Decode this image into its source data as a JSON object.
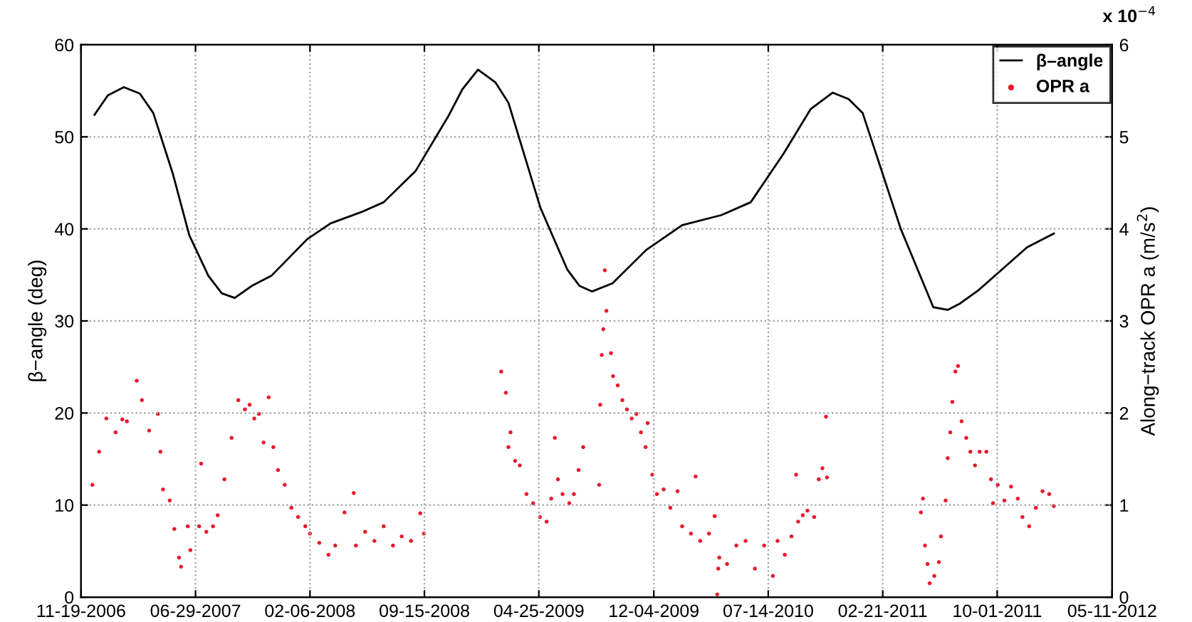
{
  "chart_data": {
    "type": "line",
    "ylabel": "β−angle (deg)",
    "y2label": "Along−track OPR a (m/s$^{2}$)",
    "annotations": [
      "x 10$^{−4}$"
    ],
    "xlim": [
      "2006-11-19",
      "2012-05-11"
    ],
    "xticks": [
      {
        "value": "2006-11-19",
        "label": "11-19-2006"
      },
      {
        "value": "2007-06-29",
        "label": "06-29-2007"
      },
      {
        "value": "2008-02-06",
        "label": "02-06-2008"
      },
      {
        "value": "2008-09-15",
        "label": "09-15-2008"
      },
      {
        "value": "2009-04-25",
        "label": "04-25-2009"
      },
      {
        "value": "2009-12-04",
        "label": "12-04-2009"
      },
      {
        "value": "2010-07-14",
        "label": "07-14-2010"
      },
      {
        "value": "2011-02-21",
        "label": "02-21-2011"
      },
      {
        "value": "2011-10-01",
        "label": "10-01-2011"
      },
      {
        "value": "2012-05-11",
        "label": "05-11-2012"
      }
    ],
    "ylim": [
      0,
      60
    ],
    "yticks": [
      0,
      10,
      20,
      30,
      40,
      50,
      60
    ],
    "y2lim": [
      0,
      6
    ],
    "y2ticks": [
      0,
      1,
      2,
      3,
      4,
      5,
      6
    ],
    "grid": true,
    "legend": "top right",
    "series": [
      {
        "name": "β–angle",
        "color": "#000000",
        "x": [
          "2006-12-15",
          "2007-01-10",
          "2007-02-10",
          "2007-03-13",
          "2007-04-08",
          "2007-05-16",
          "2007-06-17",
          "2007-07-24",
          "2007-08-19",
          "2007-09-13",
          "2007-10-16",
          "2007-11-23",
          "2008-02-01",
          "2008-03-17",
          "2008-05-19",
          "2008-06-28",
          "2008-08-29",
          "2008-10-31",
          "2008-11-28",
          "2008-12-28",
          "2009-01-31",
          "2009-02-25",
          "2009-04-28",
          "2009-06-19",
          "2009-07-13",
          "2009-08-06",
          "2009-09-15",
          "2009-11-19",
          "2010-01-28",
          "2010-04-14",
          "2010-06-10",
          "2010-08-13",
          "2010-10-04",
          "2010-11-16",
          "2010-12-17",
          "2011-01-13",
          "2011-03-28",
          "2011-05-30",
          "2011-06-27",
          "2011-07-21",
          "2011-08-27",
          "2011-11-28",
          "2012-01-19"
        ],
        "values": [
          52.4,
          54.5,
          55.4,
          54.7,
          52.6,
          46,
          39.3,
          34.9,
          33.0,
          32.5,
          33.8,
          34.9,
          38.9,
          40.6,
          41.9,
          42.9,
          46.3,
          52.2,
          55.2,
          57.3,
          55.9,
          53.7,
          42.3,
          35.6,
          33.8,
          33.2,
          34.1,
          37.7,
          40.4,
          41.5,
          42.9,
          48.2,
          53.0,
          54.8,
          54.1,
          52.6,
          40.0,
          31.5,
          31.2,
          31.9,
          33.4,
          38.0,
          39.5
        ]
      },
      {
        "name": "OPR a",
        "type": "scatter",
        "axis": "y2",
        "color": "#e8192c",
        "x": [
          "2006-12-11",
          "2006-12-24",
          "2007-01-07",
          "2007-01-25",
          "2007-02-07",
          "2007-02-16",
          "2007-03-07",
          "2007-03-17",
          "2007-03-31",
          "2007-04-17",
          "2007-04-22",
          "2007-04-27",
          "2007-05-10",
          "2007-05-19",
          "2007-05-28",
          "2007-06-01",
          "2007-06-14",
          "2007-06-19",
          "2007-07-06",
          "2007-07-10",
          "2007-07-20",
          "2007-08-02",
          "2007-08-11",
          "2007-08-24",
          "2007-09-07",
          "2007-09-20",
          "2007-10-03",
          "2007-10-12",
          "2007-10-21",
          "2007-10-30",
          "2007-11-18",
          "2007-11-08",
          "2007-11-27",
          "2007-12-06",
          "2007-12-19",
          "2008-01-01",
          "2008-01-14",
          "2008-01-28",
          "2008-02-06",
          "2008-02-24",
          "2008-03-13",
          "2008-03-26",
          "2008-04-13",
          "2008-05-01",
          "2008-05-05",
          "2008-05-23",
          "2008-06-10",
          "2008-06-28",
          "2008-07-16",
          "2008-08-02",
          "2008-08-20",
          "2008-09-07",
          "2008-09-14",
          "2009-02-11",
          "2009-02-20",
          "2009-03-01",
          "2009-02-25",
          "2009-03-10",
          "2009-03-19",
          "2009-04-01",
          "2009-04-14",
          "2009-04-27",
          "2009-05-10",
          "2009-05-19",
          "2009-05-26",
          "2009-06-01",
          "2009-06-10",
          "2009-06-23",
          "2009-07-02",
          "2009-07-11",
          "2009-07-20",
          "2009-08-20",
          "2009-08-22",
          "2009-08-25",
          "2009-08-28",
          "2009-08-31",
          "2009-09-03",
          "2009-09-12",
          "2009-09-16",
          "2009-09-25",
          "2009-10-04",
          "2009-10-13",
          "2009-10-22",
          "2009-10-31",
          "2009-11-09",
          "2009-11-18",
          "2009-11-22",
          "2009-12-01",
          "2009-12-10",
          "2009-12-23",
          "2010-01-05",
          "2010-01-19",
          "2010-01-28",
          "2010-02-14",
          "2010-02-23",
          "2010-03-04",
          "2010-03-21",
          "2010-04-01",
          "2010-04-08",
          "2010-04-10",
          "2010-04-06",
          "2010-04-25",
          "2010-05-13",
          "2010-05-31",
          "2010-06-18",
          "2010-07-06",
          "2010-07-23",
          "2010-08-01",
          "2010-08-15",
          "2010-08-28",
          "2010-09-06",
          "2010-09-10",
          "2010-09-19",
          "2010-09-28",
          "2010-10-11",
          "2010-10-20",
          "2010-10-27",
          "2010-11-03",
          "2010-11-05",
          "2011-05-06",
          "2011-05-10",
          "2011-05-14",
          "2011-05-19",
          "2011-05-23",
          "2011-06-01",
          "2011-06-10",
          "2011-06-14",
          "2011-06-23",
          "2011-06-27",
          "2011-07-02",
          "2011-07-06",
          "2011-07-12",
          "2011-07-17",
          "2011-07-24",
          "2011-08-02",
          "2011-08-10",
          "2011-08-19",
          "2011-08-28",
          "2011-09-10",
          "2011-09-19",
          "2011-09-23",
          "2011-10-02",
          "2011-10-15",
          "2011-10-28",
          "2011-11-10",
          "2011-11-19",
          "2011-12-02",
          "2011-12-15",
          "2011-12-28",
          "2012-01-10",
          "2012-01-19"
        ],
        "values": [
          1.22,
          1.58,
          1.94,
          1.79,
          1.93,
          1.91,
          2.35,
          2.14,
          1.81,
          1.99,
          1.58,
          1.17,
          1.05,
          0.74,
          0.43,
          0.33,
          0.77,
          0.51,
          0.77,
          1.45,
          0.71,
          0.77,
          0.89,
          1.28,
          1.73,
          2.14,
          2.04,
          2.09,
          1.94,
          1.99,
          2.17,
          1.68,
          1.63,
          1.38,
          1.22,
          0.97,
          0.87,
          0.77,
          0.69,
          0.59,
          0.46,
          0.56,
          0.92,
          1.13,
          0.56,
          0.71,
          0.61,
          0.77,
          0.56,
          0.66,
          0.61,
          0.91,
          0.69,
          2.45,
          2.22,
          1.79,
          1.63,
          1.48,
          1.43,
          1.12,
          1.02,
          0.87,
          0.82,
          1.07,
          1.73,
          1.28,
          1.12,
          1.02,
          1.12,
          1.38,
          1.63,
          1.22,
          2.09,
          2.63,
          2.91,
          3.55,
          3.11,
          2.65,
          2.4,
          2.3,
          2.14,
          2.04,
          1.94,
          1.99,
          1.79,
          1.63,
          1.89,
          1.33,
          1.12,
          1.17,
          0.97,
          1.15,
          0.77,
          0.69,
          1.31,
          0.61,
          0.69,
          0.88,
          0.31,
          0.43,
          0.03,
          0.36,
          0.56,
          0.61,
          0.31,
          0.56,
          0.23,
          0.61,
          0.46,
          0.66,
          1.33,
          0.82,
          0.89,
          0.94,
          0.87,
          1.28,
          1.4,
          1.96,
          1.3,
          0.92,
          1.07,
          0.56,
          0.36,
          0.15,
          0.23,
          0.38,
          0.66,
          1.05,
          1.51,
          1.79,
          2.12,
          2.45,
          2.51,
          1.91,
          1.73,
          1.58,
          1.43,
          1.58,
          1.58,
          1.28,
          1.02,
          1.22,
          1.05,
          1.2,
          1.07,
          0.87,
          0.77,
          0.97,
          1.15,
          1.12,
          0.99
        ]
      }
    ]
  }
}
